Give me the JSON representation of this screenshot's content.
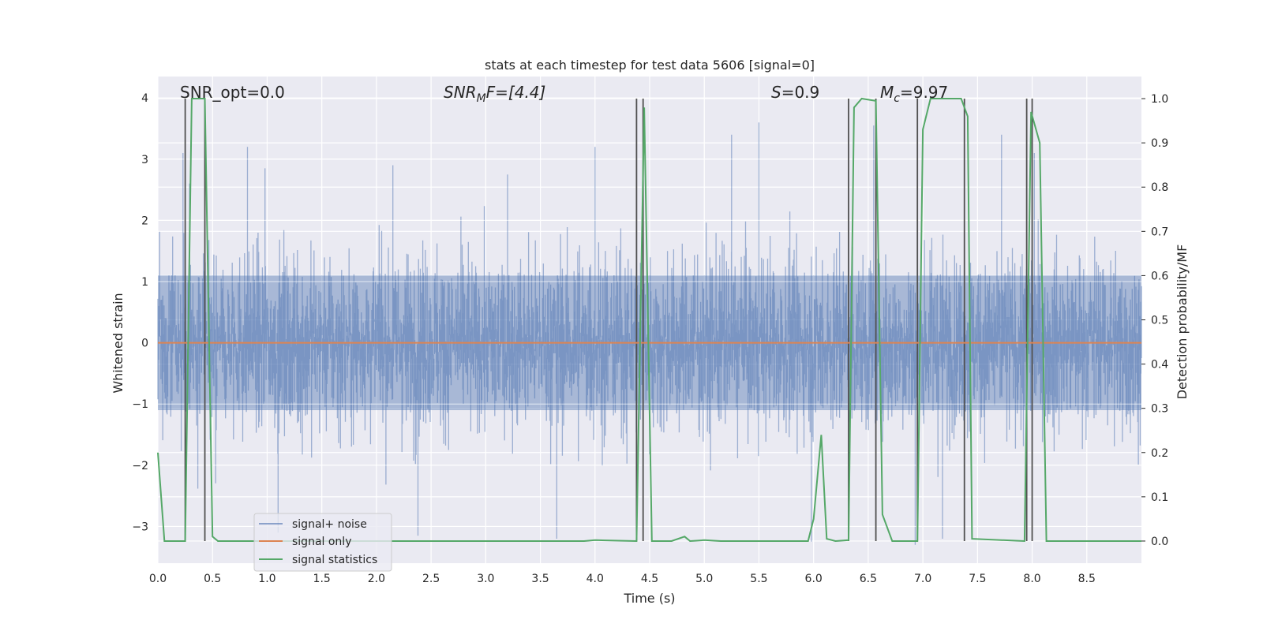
{
  "chart_data": {
    "type": "line",
    "title": "stats at each timestep for test data 5606 [signal=0]",
    "xlabel": "Time (s)",
    "ylabel": "Whitened strain",
    "y2label": "Detection probability/MF",
    "xlim": [
      0.0,
      9.0
    ],
    "ylim": [
      -3.6,
      4.35
    ],
    "y2lim": [
      -0.05,
      1.05
    ],
    "xticks": [
      0.0,
      0.5,
      1.0,
      1.5,
      2.0,
      2.5,
      3.0,
      3.5,
      4.0,
      4.5,
      5.0,
      5.5,
      6.0,
      6.5,
      7.0,
      7.5,
      8.0,
      8.5
    ],
    "xtick_labels": [
      "0.0",
      "0.5",
      "1.0",
      "1.5",
      "2.0",
      "2.5",
      "3.0",
      "3.5",
      "4.0",
      "4.5",
      "5.0",
      "5.5",
      "6.0",
      "6.5",
      "7.0",
      "7.5",
      "8.0",
      "8.5"
    ],
    "yticks": [
      -3,
      -2,
      -1,
      0,
      1,
      2,
      3,
      4
    ],
    "ytick_labels": [
      "−3",
      "−2",
      "−1",
      "0",
      "1",
      "2",
      "3",
      "4"
    ],
    "y2ticks": [
      0.0,
      0.1,
      0.2,
      0.3,
      0.4,
      0.5,
      0.6,
      0.7,
      0.8,
      0.9,
      1.0
    ],
    "y2tick_labels": [
      "0.0",
      "0.1",
      "0.2",
      "0.3",
      "0.4",
      "0.5",
      "0.6",
      "0.7",
      "0.8",
      "0.9",
      "1.0"
    ],
    "annotations": {
      "snr_opt": "SNR_opt=0.0",
      "snr_mf_main": "SNR",
      "snr_mf_sub": "M",
      "snr_mf_rest": "F=[4.4]",
      "s_main": "S",
      "s_rest": "=0.9",
      "mc_main": "M",
      "mc_sub": "c",
      "mc_rest": "=9.97"
    },
    "legend": {
      "position": "lower-left",
      "entries": [
        {
          "label": "signal+ noise",
          "color": "#4c72b0"
        },
        {
          "label": "signal only",
          "color": "#dd8452"
        },
        {
          "label": "signal statistics",
          "color": "#55a868"
        }
      ]
    },
    "series": [
      {
        "name": "signal+ noise",
        "axis": "left",
        "color": "#4c72b0",
        "opacity": 0.5,
        "kind": "noise",
        "typical_range": [
          -1.1,
          1.1
        ],
        "extreme_range": [
          -3.2,
          3.8
        ],
        "peaks": [
          {
            "x": 0.23,
            "y": 3.1
          },
          {
            "x": 0.29,
            "y": 2.6
          },
          {
            "x": 0.82,
            "y": 3.2
          },
          {
            "x": 0.98,
            "y": 2.85
          },
          {
            "x": 2.15,
            "y": 2.9
          },
          {
            "x": 3.2,
            "y": 2.75
          },
          {
            "x": 4.0,
            "y": 3.2
          },
          {
            "x": 5.5,
            "y": 3.6
          },
          {
            "x": 5.25,
            "y": 3.4
          },
          {
            "x": 6.55,
            "y": 3.55
          },
          {
            "x": 7.72,
            "y": 3.4
          },
          {
            "x": 8.02,
            "y": 3.1
          },
          {
            "x": 1.1,
            "y": -3.1
          },
          {
            "x": 2.38,
            "y": -3.15
          },
          {
            "x": 3.65,
            "y": -3.2
          },
          {
            "x": 5.98,
            "y": -3.25
          },
          {
            "x": 6.93,
            "y": -3.3
          },
          {
            "x": 7.18,
            "y": -3.2
          }
        ]
      },
      {
        "name": "signal only",
        "axis": "left",
        "color": "#dd8452",
        "x": [
          0.0,
          9.0
        ],
        "y": [
          0.0,
          0.0
        ]
      },
      {
        "name": "signal statistics",
        "axis": "right",
        "color": "#55a868",
        "x": [
          0.0,
          0.06,
          0.25,
          0.31,
          0.36,
          0.43,
          0.5,
          0.55,
          3.9,
          4.0,
          4.38,
          4.45,
          4.52,
          4.7,
          4.82,
          4.87,
          5.0,
          5.15,
          5.95,
          6.0,
          6.07,
          6.12,
          6.2,
          6.32,
          6.37,
          6.44,
          6.57,
          6.63,
          6.72,
          6.95,
          7.0,
          7.07,
          7.35,
          7.41,
          7.45,
          7.93,
          7.99,
          8.07,
          8.13,
          8.5,
          9.0
        ],
        "y": [
          0.2,
          0.0,
          0.0,
          1.0,
          1.0,
          1.0,
          0.01,
          0.0,
          0.0,
          0.002,
          0.0,
          0.98,
          0.0,
          0.0,
          0.01,
          0.0,
          0.002,
          0.0,
          0.0,
          0.05,
          0.24,
          0.005,
          0.0,
          0.002,
          0.98,
          1.0,
          0.995,
          0.06,
          0.0,
          0.0,
          0.93,
          1.0,
          1.0,
          0.96,
          0.005,
          0.0,
          0.97,
          0.9,
          0.0,
          0.0,
          0.0
        ]
      }
    ],
    "vertical_lines": {
      "color": "#505050",
      "x": [
        0.25,
        0.43,
        4.38,
        4.44,
        6.32,
        6.57,
        6.95,
        7.38,
        7.95,
        8.0
      ]
    }
  }
}
